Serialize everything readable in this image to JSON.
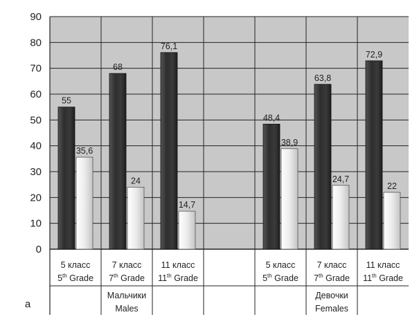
{
  "chart_data": {
    "type": "bar",
    "panel_label": "a",
    "y_ticks": [
      "0",
      "10",
      "20",
      "30",
      "40",
      "50",
      "60",
      "70",
      "80",
      "90"
    ],
    "ylim": [
      0,
      90
    ],
    "grid": true,
    "groups": [
      {
        "name_ru": "Мальчики",
        "name_en": "Males"
      },
      {
        "name_ru": "Девочки",
        "name_en": "Females"
      }
    ],
    "categories": [
      {
        "ru": "5 класс",
        "num": "5",
        "sup": "th",
        "en": "Grade",
        "group": 0
      },
      {
        "ru": "7 класс",
        "num": "7",
        "sup": "th",
        "en": "Grade",
        "group": 0
      },
      {
        "ru": "11 класс",
        "num": "11",
        "sup": "th",
        "en": "Grade",
        "group": 0
      },
      {
        "ru": "5 класс",
        "num": "5",
        "sup": "th",
        "en": "Grade",
        "group": 1
      },
      {
        "ru": "7 класс",
        "num": "7",
        "sup": "th",
        "en": "Grade",
        "group": 1
      },
      {
        "ru": "11 класс",
        "num": "11",
        "sup": "th",
        "en": "Grade",
        "group": 1
      }
    ],
    "series": [
      {
        "values": [
          55,
          68,
          76.1,
          48.4,
          63.8,
          72.9
        ],
        "labels": [
          "55",
          "68",
          "76,1",
          "48,4",
          "63,8",
          "72,9"
        ],
        "color": "#3a3a3a"
      },
      {
        "values": [
          35.6,
          24,
          14.7,
          38.9,
          24.7,
          22
        ],
        "labels": [
          "35,6",
          "24",
          "14,7",
          "38,9",
          "24,7",
          "22"
        ],
        "color": "#e6e6e6"
      }
    ],
    "colors": {
      "plot_background": "#c8c8c8",
      "table_background": "#ffffff",
      "grid": "#222222"
    }
  }
}
